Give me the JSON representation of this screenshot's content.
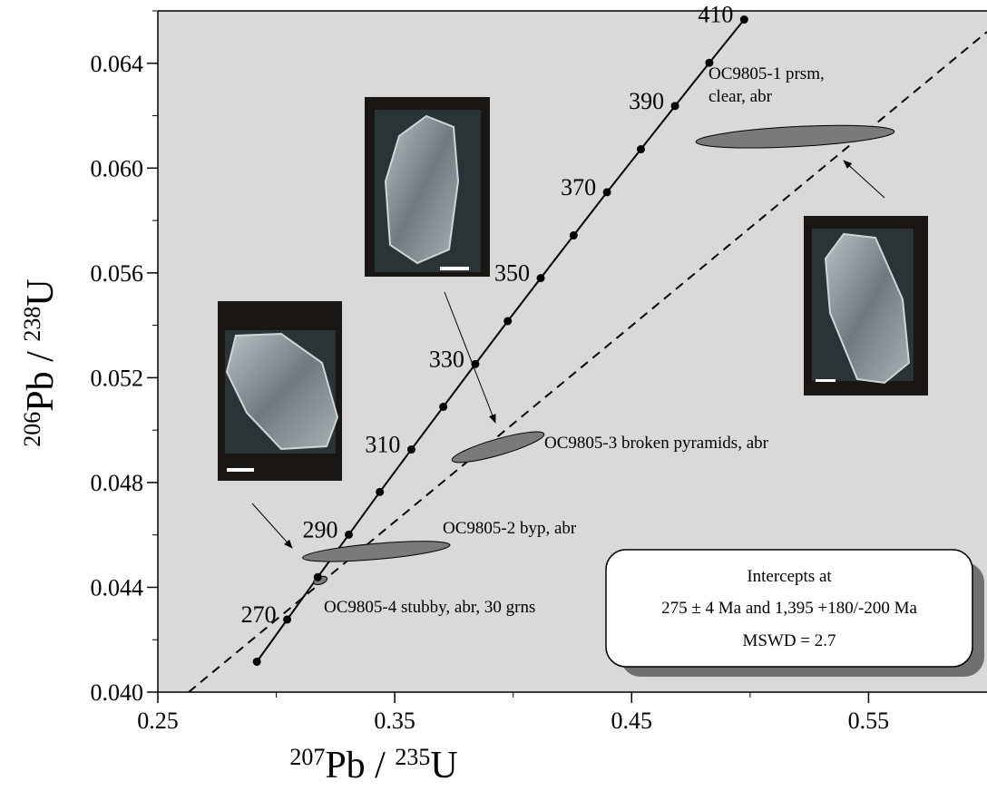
{
  "chart_data": {
    "type": "concordia",
    "xlabel": {
      "mass": "207",
      "element": "Pb",
      "sep": " / ",
      "mass2": "235",
      "element2": "U"
    },
    "ylabel": {
      "mass": "206",
      "element": "Pb",
      "sep": " / ",
      "mass2": "238",
      "element2": "U"
    },
    "xlim": [
      0.25,
      0.6
    ],
    "ylim": [
      0.04,
      0.066
    ],
    "xticks": [
      0.25,
      0.35,
      0.45,
      0.55
    ],
    "yticks": [
      {
        "value": 0.04,
        "label": "0.040"
      },
      0.044,
      0.048,
      0.052,
      0.056,
      {
        "value": 0.06,
        "label": "0.060"
      },
      0.064
    ],
    "xminor": [
      0.3,
      0.4,
      0.5
    ],
    "yminor": [
      0.042,
      0.046,
      0.05,
      0.054,
      0.058,
      0.062,
      0.066
    ],
    "concordia": {
      "ages": [
        null,
        270,
        null,
        290,
        null,
        310,
        null,
        330,
        null,
        350,
        null,
        370,
        null,
        390,
        null,
        410
      ],
      "x": [
        0.2918,
        0.3046,
        0.3175,
        0.3306,
        0.3437,
        0.357,
        0.3705,
        0.384,
        0.3977,
        0.4116,
        0.4255,
        0.4396,
        0.4539,
        0.4683,
        0.4828,
        0.4975
      ],
      "y": [
        0.04116,
        0.04277,
        0.04439,
        0.04601,
        0.04764,
        0.04926,
        0.05089,
        0.05252,
        0.05416,
        0.0558,
        0.05743,
        0.05908,
        0.06072,
        0.06237,
        0.06402,
        0.06567
      ],
      "color": "#000000"
    },
    "discordia": {
      "x": [
        0.263,
        0.6
      ],
      "y": [
        0.04,
        0.0652
      ],
      "color": "#000000"
    },
    "ellipses": [
      {
        "label_lines": [
          "OC9805-1 prsm,",
          "clear, abr"
        ],
        "x": 0.519,
        "y": 0.0612,
        "sx": 0.0419,
        "sy": 0.00038,
        "angle": -3,
        "color": "#7a7a7a"
      },
      {
        "label_lines": [
          "OC9805-3 broken pyramids, abr"
        ],
        "x": 0.3936,
        "y": 0.04935,
        "sx": 0.0202,
        "sy": 0.00031,
        "angle": -16,
        "color": "#7a7a7a"
      },
      {
        "label_lines": [
          "OC9805-2 byp, abr"
        ],
        "x": 0.3422,
        "y": 0.04537,
        "sx": 0.0312,
        "sy": 0.0003,
        "angle": -5,
        "color": "#7a7a7a"
      },
      {
        "label_lines": [
          "OC9805-4 stubby, abr, 30 grns"
        ],
        "x": 0.3186,
        "y": 0.04426,
        "sx": 0.003,
        "sy": 0.00014,
        "angle": -20,
        "color": "#7a7a7a"
      }
    ],
    "annotation": [
      "Intercepts at",
      "275 ± 4 Ma and 1,395 +180/-200 Ma",
      "MSWD = 2.7"
    ]
  }
}
